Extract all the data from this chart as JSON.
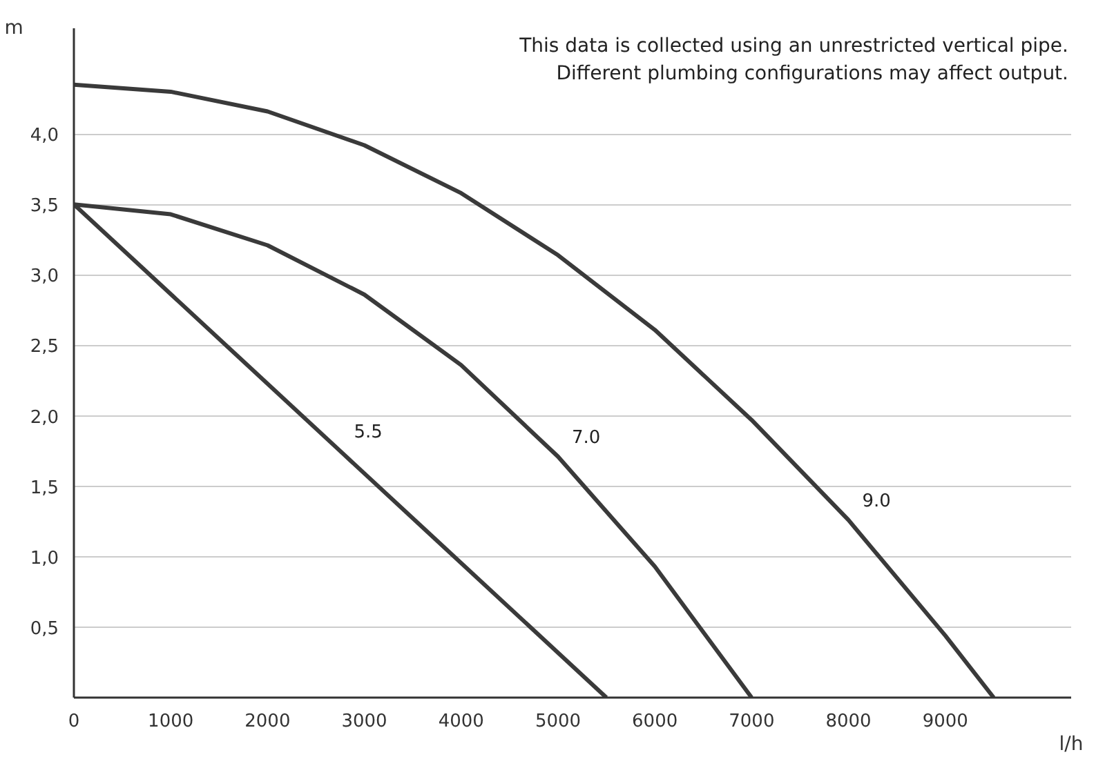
{
  "chart_data": {
    "type": "line",
    "xlabel": "l/h",
    "ylabel": "m",
    "annotations": [
      "This data is collected using an unrestricted vertical pipe.\nDifferent plumbing configurations may affect output."
    ],
    "series": [
      {
        "name": "5.5",
        "color": "#3a3a3a",
        "x": [
          0,
          2750,
          5500
        ],
        "values": [
          3.5,
          1.75,
          0
        ]
      },
      {
        "name": "7.0",
        "color": "#3a3a3a",
        "x": [
          0,
          1000,
          2000,
          3000,
          4000,
          5000,
          6000,
          7000
        ],
        "values": [
          3.5,
          3.43,
          3.21,
          2.86,
          2.36,
          1.71,
          0.93,
          0
        ]
      },
      {
        "name": "9.0",
        "color": "#3a3a3a",
        "x": [
          0,
          1000,
          2000,
          3000,
          4000,
          5000,
          6000,
          7000,
          8000,
          9000,
          9500
        ],
        "values": [
          4.35,
          4.3,
          4.16,
          3.92,
          3.58,
          3.14,
          2.61,
          1.97,
          1.26,
          0.44,
          0
        ]
      }
    ],
    "xlim": [
      0,
      10300
    ],
    "ylim": [
      0,
      4.75
    ],
    "xticks": [
      {
        "value": 0,
        "label": "0"
      },
      1000,
      2000,
      3000,
      4000,
      5000,
      6000,
      7000,
      8000,
      9000
    ],
    "yticks": [
      {
        "value": 0,
        "label": null
      },
      {
        "value": 0.5,
        "label": "0,5"
      },
      {
        "value": 1,
        "label": "1,0"
      },
      {
        "value": 1.5,
        "label": "1,5"
      },
      {
        "value": 2,
        "label": "2,0"
      },
      {
        "value": 2.5,
        "label": "2,5"
      },
      {
        "value": 3,
        "label": "3,0"
      },
      {
        "value": 3.5,
        "label": "3,5"
      },
      {
        "value": 4,
        "label": "4,0"
      }
    ],
    "grid": "y",
    "marker": "none",
    "line_style": "solid"
  }
}
